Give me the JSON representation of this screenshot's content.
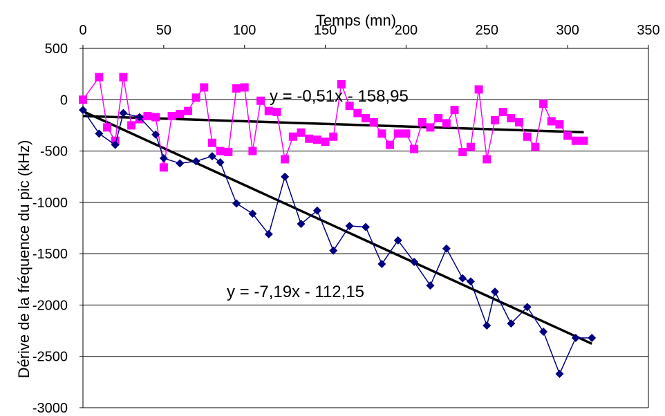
{
  "chart_data": {
    "type": "scatter",
    "xlabel": "Temps (mn)",
    "ylabel": "Dérive de la fréquence du pic (kHz)",
    "xlim": [
      0,
      350
    ],
    "ylim": [
      -3000,
      500
    ],
    "x_ticks": [
      0,
      50,
      100,
      150,
      200,
      250,
      300,
      350
    ],
    "y_ticks": [
      500,
      0,
      -500,
      -1000,
      -1500,
      -2000,
      -2500,
      -3000
    ],
    "x_tick_labels": [
      "0",
      "50",
      "100",
      "150",
      "200",
      "250",
      "300",
      "350"
    ],
    "y_tick_labels": [
      "500",
      "0",
      "-500",
      "-1000",
      "-1500",
      "-2000",
      "-2500",
      "-3000"
    ],
    "x_axis_position": "top",
    "grid": "horizontal",
    "legend": "none",
    "series": [
      {
        "color": "#FF00FF",
        "marker": "square",
        "x": [
          0,
          10,
          15,
          20,
          25,
          30,
          35,
          40,
          45,
          50,
          55,
          60,
          65,
          70,
          75,
          80,
          85,
          90,
          95,
          100,
          105,
          110,
          115,
          120,
          125,
          130,
          135,
          140,
          145,
          150,
          155,
          160,
          165,
          170,
          175,
          180,
          185,
          190,
          195,
          200,
          205,
          210,
          215,
          220,
          225,
          230,
          235,
          240,
          245,
          250,
          255,
          260,
          265,
          270,
          275,
          280,
          285,
          290,
          295,
          300,
          305,
          310
        ],
        "y": [
          0,
          220,
          -270,
          -400,
          220,
          -250,
          -190,
          -160,
          -170,
          -660,
          -160,
          -140,
          -110,
          20,
          120,
          -420,
          -500,
          -510,
          110,
          120,
          -500,
          -10,
          -110,
          -120,
          -580,
          -360,
          -320,
          -380,
          -390,
          -410,
          -360,
          150,
          -60,
          -130,
          -180,
          -220,
          -330,
          -440,
          -330,
          -330,
          -480,
          -220,
          -270,
          -180,
          -230,
          -100,
          -510,
          -460,
          100,
          -580,
          -200,
          -120,
          -180,
          -220,
          -360,
          -460,
          -40,
          -210,
          -240,
          -350,
          -400,
          -400
        ],
        "trend_x": [
          0,
          310
        ],
        "trend_equation": "y = -0,51x - 158,95",
        "trend_slope": -0.51,
        "trend_intercept": -158.95
      },
      {
        "color": "#000080",
        "marker": "diamond",
        "x": [
          0,
          10,
          20,
          25,
          35,
          45,
          50,
          60,
          70,
          80,
          85,
          95,
          105,
          115,
          125,
          135,
          145,
          155,
          165,
          175,
          185,
          195,
          205,
          215,
          225,
          235,
          240,
          250,
          255,
          265,
          275,
          285,
          295,
          305,
          315
        ],
        "y": [
          -100,
          -330,
          -440,
          -130,
          -170,
          -340,
          -570,
          -620,
          -600,
          -550,
          -610,
          -1010,
          -1110,
          -1310,
          -750,
          -1210,
          -1080,
          -1470,
          -1230,
          -1240,
          -1600,
          -1370,
          -1580,
          -1810,
          -1450,
          -1740,
          -1770,
          -2200,
          -1870,
          -2180,
          -2020,
          -2260,
          -2670,
          -2320,
          -2320
        ],
        "trend_x": [
          0,
          315
        ],
        "trend_equation": "y = -7,19x - 112,15",
        "trend_slope": -7.19,
        "trend_intercept": -112.15
      }
    ]
  }
}
